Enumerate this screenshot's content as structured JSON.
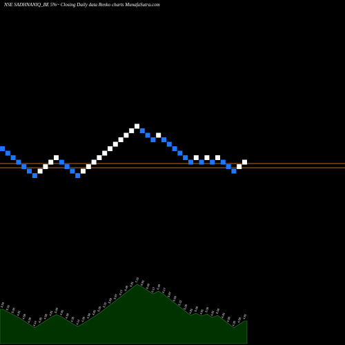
{
  "chart_data": {
    "type": "renko",
    "title": "NSE SADHNANIQ_BE 5%~  Closing Daily data  Renko  charts MunafaSutra.com",
    "colors": {
      "background": "#000000",
      "up_brick": "#ffffff",
      "down_brick": "#1e78ff",
      "reference_line": "#c06a2a",
      "volume_fill": "#003300",
      "volume_line": "#3a7a3a",
      "label": "#ffffff"
    },
    "bricks": [
      {
        "d": "down",
        "level": 8
      },
      {
        "d": "down",
        "level": 7
      },
      {
        "d": "down",
        "level": 6
      },
      {
        "d": "down",
        "level": 5
      },
      {
        "d": "down",
        "level": 4
      },
      {
        "d": "down",
        "level": 3
      },
      {
        "d": "down",
        "level": 2
      },
      {
        "d": "up",
        "level": 3
      },
      {
        "d": "up",
        "level": 4
      },
      {
        "d": "up",
        "level": 5
      },
      {
        "d": "up",
        "level": 6
      },
      {
        "d": "down",
        "level": 5
      },
      {
        "d": "down",
        "level": 4
      },
      {
        "d": "down",
        "level": 3
      },
      {
        "d": "down",
        "level": 2
      },
      {
        "d": "up",
        "level": 3
      },
      {
        "d": "up",
        "level": 4
      },
      {
        "d": "up",
        "level": 5
      },
      {
        "d": "up",
        "level": 6
      },
      {
        "d": "up",
        "level": 7
      },
      {
        "d": "up",
        "level": 8
      },
      {
        "d": "up",
        "level": 9
      },
      {
        "d": "up",
        "level": 10
      },
      {
        "d": "up",
        "level": 11
      },
      {
        "d": "up",
        "level": 12
      },
      {
        "d": "up",
        "level": 13
      },
      {
        "d": "down",
        "level": 12
      },
      {
        "d": "down",
        "level": 11
      },
      {
        "d": "down",
        "level": 10
      },
      {
        "d": "up",
        "level": 11
      },
      {
        "d": "down",
        "level": 10
      },
      {
        "d": "down",
        "level": 9
      },
      {
        "d": "down",
        "level": 8
      },
      {
        "d": "down",
        "level": 7
      },
      {
        "d": "down",
        "level": 6
      },
      {
        "d": "down",
        "level": 5
      },
      {
        "d": "up",
        "level": 6
      },
      {
        "d": "down",
        "level": 5
      },
      {
        "d": "up",
        "level": 6
      },
      {
        "d": "down",
        "level": 5
      },
      {
        "d": "up",
        "level": 6
      },
      {
        "d": "down",
        "level": 5
      },
      {
        "d": "down",
        "level": 4
      },
      {
        "d": "down",
        "level": 3
      },
      {
        "d": "up",
        "level": 4
      },
      {
        "d": "up",
        "level": 5
      }
    ],
    "reference_lines": [
      {
        "level": 4.7
      },
      {
        "level": 3.75
      }
    ],
    "volume": {
      "values": [
        5,
        4.6,
        4.2,
        3.8,
        3.3,
        2.8,
        2.3,
        2.8,
        3.3,
        3.8,
        4.2,
        3.9,
        3.4,
        2.9,
        2.5,
        2.9,
        3.4,
        3.9,
        4.4,
        5,
        5.6,
        6.2,
        6.8,
        7.4,
        8,
        8.6,
        8.2,
        7.7,
        7.2,
        7.6,
        7.1,
        6.5,
        5.9,
        5.3,
        4.7,
        4.1,
        4.4,
        4,
        4.3,
        3.8,
        4.1,
        3.5,
        2.9,
        2.3,
        2.8,
        3.3
      ],
      "labels": [
        "5.59",
        "5.32",
        "5.06",
        "4.81",
        "4.58",
        "4.35",
        "4.14",
        "4.35",
        "4.58",
        "4.81",
        "5.06",
        "4.81",
        "4.58",
        "4.35",
        "4.14",
        "4.35",
        "4.58",
        "4.81",
        "5.06",
        "5.32",
        "5.59",
        "5.87",
        "6.17",
        "6.48",
        "6.81",
        "7.15",
        "6.81",
        "6.48",
        "6.17",
        "6.48",
        "6.17",
        "5.87",
        "5.59",
        "5.32",
        "5.06",
        "4.81",
        "5.06",
        "4.81",
        "5.06",
        "4.81",
        "5.06",
        "4.81",
        "4.58",
        "4.35",
        "4.58",
        "4.81"
      ]
    }
  }
}
